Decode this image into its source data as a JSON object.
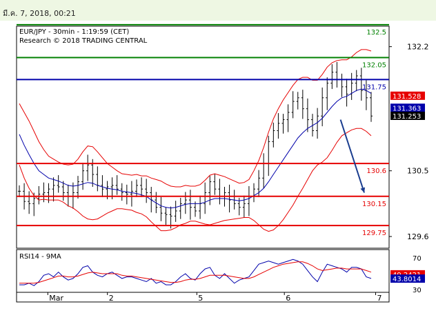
{
  "timestamp": "มี.ค. 7, 2018, 00:21",
  "chart_data": [
    {
      "type": "line",
      "title": "EUR/JPY - 30min - 1:19:59 (CET)",
      "subtitle": "Research © 2018 TRADING CENTRAL",
      "ylim": [
        129.44,
        132.48
      ],
      "y_ticks": [
        {
          "v": 132.2,
          "label": "132.2"
        },
        {
          "v": 130.5,
          "label": "130.5"
        },
        {
          "v": 129.6,
          "label": "129.6"
        }
      ],
      "x_ticks": [
        {
          "label": "Mar",
          "x": 0.095
        },
        {
          "label": "2",
          "x": 0.255
        },
        {
          "label": "5",
          "x": 0.495
        },
        {
          "label": "6",
          "x": 0.73
        },
        {
          "label": "7",
          "x": 0.975
        }
      ],
      "levels": [
        {
          "value": 132.5,
          "label": "132.5",
          "color": "#008000"
        },
        {
          "value": 132.05,
          "label": "132.05",
          "color": "#008000"
        },
        {
          "value": 131.75,
          "label": "131.75",
          "color": "#0000aa"
        },
        {
          "value": 130.6,
          "label": "130.6",
          "color": "#e60000"
        },
        {
          "value": 130.15,
          "label": "130.15",
          "color": "#e60000"
        },
        {
          "value": 129.75,
          "label": "129.75",
          "color": "#e60000"
        }
      ],
      "price_tags": [
        {
          "value": 131.528,
          "label": "131.528",
          "color": "#e60000"
        },
        {
          "value": 131.363,
          "label": "131.363",
          "color": "#0000aa"
        },
        {
          "value": 131.253,
          "label": "131.253",
          "color": "#000000"
        }
      ],
      "forecast_arrow": {
        "from": {
          "x": 0.94,
          "y": 131.2
        },
        "to": {
          "x": 1.0,
          "y": 130.2
        },
        "color": "#1a3d8f"
      },
      "price_series": [
        130.22,
        130.08,
        130.05,
        130.12,
        130.18,
        130.2,
        130.25,
        130.3,
        130.28,
        130.2,
        130.15,
        130.2,
        130.35,
        130.5,
        130.58,
        130.45,
        130.3,
        130.25,
        130.28,
        130.3,
        130.25,
        130.2,
        130.18,
        130.22,
        130.3,
        130.25,
        130.2,
        130.1,
        130.0,
        129.92,
        129.9,
        129.88,
        129.95,
        130.05,
        130.1,
        130.0,
        129.95,
        130.05,
        130.2,
        130.35,
        130.25,
        130.15,
        130.2,
        130.1,
        130.05,
        130.0,
        130.05,
        130.15,
        130.25,
        130.4,
        130.6,
        130.9,
        131.05,
        131.15,
        131.2,
        131.3,
        131.45,
        131.5,
        131.35,
        131.2,
        131.05,
        131.25,
        131.5,
        131.7,
        131.85,
        131.75,
        131.65,
        131.55,
        131.7,
        131.8,
        131.6,
        131.5,
        131.25
      ],
      "ma_series": [
        131.0,
        130.85,
        130.72,
        130.6,
        130.5,
        130.45,
        130.4,
        130.38,
        130.36,
        130.33,
        130.3,
        130.29,
        130.3,
        130.32,
        130.34,
        130.33,
        130.3,
        130.28,
        130.26,
        130.25,
        130.24,
        130.22,
        130.21,
        130.2,
        130.19,
        130.17,
        130.15,
        130.1,
        130.06,
        130.02,
        130.0,
        129.99,
        130.0,
        130.02,
        130.04,
        130.05,
        130.05,
        130.05,
        130.07,
        130.1,
        130.12,
        130.12,
        130.12,
        130.11,
        130.1,
        130.09,
        130.1,
        130.12,
        130.16,
        130.2,
        130.26,
        130.35,
        130.45,
        130.55,
        130.65,
        130.75,
        130.85,
        130.95,
        131.02,
        131.08,
        131.12,
        131.16,
        131.22,
        131.3,
        131.38,
        131.45,
        131.5,
        131.52,
        131.56,
        131.6,
        131.62,
        131.6,
        131.56
      ],
      "band_width": [
        0.42,
        0.45,
        0.46,
        0.44,
        0.4,
        0.34,
        0.3,
        0.28,
        0.26,
        0.26,
        0.28,
        0.3,
        0.36,
        0.44,
        0.5,
        0.5,
        0.46,
        0.4,
        0.34,
        0.3,
        0.26,
        0.24,
        0.24,
        0.24,
        0.26,
        0.26,
        0.28,
        0.3,
        0.32,
        0.34,
        0.32,
        0.3,
        0.28,
        0.26,
        0.26,
        0.24,
        0.24,
        0.26,
        0.3,
        0.34,
        0.34,
        0.32,
        0.3,
        0.28,
        0.26,
        0.24,
        0.24,
        0.26,
        0.34,
        0.44,
        0.56,
        0.68,
        0.76,
        0.8,
        0.82,
        0.82,
        0.82,
        0.8,
        0.76,
        0.7,
        0.62,
        0.58,
        0.6,
        0.62,
        0.6,
        0.56,
        0.52,
        0.5,
        0.5,
        0.52,
        0.54,
        0.56,
        0.58
      ]
    },
    {
      "type": "line",
      "title": "RSI14 - 9MA",
      "ylim": [
        30,
        70
      ],
      "y_ticks": [
        {
          "v": 70,
          "label": "70"
        },
        {
          "v": 30,
          "label": "30"
        }
      ],
      "price_tags": [
        {
          "value": 49.2421,
          "label": "49.2421",
          "color": "#e60000"
        },
        {
          "value": 43.8014,
          "label": "43.8014",
          "color": "#0000aa"
        }
      ],
      "series": [
        {
          "values": [
            36,
            36,
            38,
            35,
            40,
            48,
            50,
            46,
            52,
            46,
            42,
            44,
            50,
            58,
            60,
            52,
            48,
            46,
            50,
            52,
            48,
            44,
            46,
            46,
            44,
            42,
            40,
            44,
            38,
            40,
            36,
            36,
            40,
            46,
            50,
            44,
            42,
            50,
            56,
            58,
            48,
            44,
            50,
            44,
            38,
            42,
            44,
            46,
            54,
            62,
            64,
            66,
            64,
            62,
            64,
            66,
            68,
            66,
            62,
            54,
            46,
            40,
            52,
            62,
            60,
            58,
            56,
            52,
            58,
            58,
            56,
            46,
            44
          ]
        },
        {
          "values": [
            38,
            38,
            38,
            38,
            39,
            41,
            43,
            45,
            47,
            47,
            46,
            46,
            47,
            49,
            51,
            52,
            51,
            50,
            50,
            50,
            50,
            48,
            47,
            47,
            46,
            45,
            44,
            43,
            42,
            41,
            40,
            39,
            39,
            40,
            42,
            43,
            43,
            44,
            46,
            48,
            48,
            48,
            48,
            47,
            46,
            45,
            44,
            44,
            46,
            49,
            52,
            55,
            58,
            60,
            62,
            63,
            64,
            65,
            65,
            63,
            60,
            56,
            54,
            55,
            56,
            57,
            57,
            56,
            56,
            56,
            56,
            54,
            52
          ]
        }
      ]
    }
  ]
}
